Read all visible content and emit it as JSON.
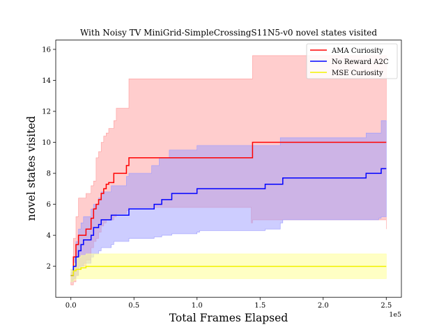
{
  "chart_data": {
    "type": "line",
    "title": "With Noisy TV MiniGrid-SimpleCrossingS11N5-v0 novel states visited",
    "xlabel": "Total Frames Elapsed",
    "ylabel": "novel states visited",
    "x_offset_label": "1e5",
    "xlim": [
      -12000,
      262000
    ],
    "ylim": [
      0,
      16.6
    ],
    "x_ticks": [
      0,
      50000,
      100000,
      150000,
      200000,
      250000
    ],
    "x_tick_labels": [
      "0.0",
      "0.5",
      "1.0",
      "1.5",
      "2.0",
      "2.5"
    ],
    "y_ticks": [
      2,
      4,
      6,
      8,
      10,
      12,
      14,
      16
    ],
    "y_tick_labels": [
      "2",
      "4",
      "6",
      "8",
      "10",
      "12",
      "14",
      "16"
    ],
    "legend_position": "top-right",
    "series": [
      {
        "name": "AMA Curiosity",
        "color": "#ff0000",
        "band_color": "#ff9c9c",
        "band_opacity": 0.5,
        "x": [
          0,
          2000,
          4000,
          6000,
          12000,
          16000,
          18000,
          20000,
          22000,
          24000,
          26000,
          28000,
          30000,
          34000,
          36000,
          44000,
          46000,
          143000,
          144000,
          250000
        ],
        "y": [
          1.4,
          2.6,
          3.4,
          4.0,
          4.4,
          5.1,
          5.7,
          6.0,
          6.3,
          6.7,
          7.0,
          7.3,
          7.4,
          8.0,
          8.0,
          8.5,
          9.0,
          9.0,
          10.0,
          10.0
        ],
        "lower": [
          0.8,
          1.0,
          1.4,
          2.0,
          2.4,
          3.2,
          3.6,
          3.8,
          4.2,
          4.6,
          4.8,
          5.0,
          5.0,
          5.2,
          5.4,
          5.6,
          5.8,
          4.8,
          5.0,
          4.4
        ],
        "upper": [
          1.6,
          3.8,
          5.2,
          6.4,
          6.7,
          7.2,
          7.5,
          9.0,
          9.4,
          10.0,
          10.4,
          10.6,
          10.9,
          11.4,
          12.2,
          12.2,
          14.1,
          14.1,
          15.6,
          15.6
        ]
      },
      {
        "name": "No Reward A2C",
        "color": "#0000ff",
        "band_color": "#9c9cff",
        "band_opacity": 0.5,
        "x": [
          0,
          2000,
          4000,
          6000,
          8000,
          10000,
          16000,
          18000,
          22000,
          24000,
          32000,
          34000,
          44000,
          46000,
          64000,
          66000,
          70000,
          72000,
          78000,
          80000,
          100000,
          102000,
          152000,
          154000,
          166000,
          168000,
          232000,
          234000,
          244000,
          246000,
          250000
        ],
        "y": [
          1.4,
          2.0,
          2.6,
          3.0,
          3.4,
          3.7,
          4.0,
          4.5,
          4.7,
          5.0,
          5.3,
          5.3,
          5.3,
          5.7,
          5.7,
          6.0,
          6.0,
          6.3,
          6.3,
          6.7,
          7.0,
          7.0,
          7.0,
          7.3,
          7.3,
          7.7,
          7.7,
          8.0,
          8.0,
          8.3,
          8.3
        ],
        "lower": [
          1.0,
          1.2,
          1.4,
          1.8,
          2.0,
          2.2,
          2.6,
          2.8,
          3.0,
          3.2,
          3.4,
          3.6,
          3.6,
          3.8,
          3.8,
          3.9,
          3.9,
          4.0,
          4.0,
          4.1,
          4.2,
          4.3,
          4.3,
          4.4,
          4.8,
          5.0,
          5.0,
          5.0,
          5.1,
          5.2,
          5.3
        ],
        "upper": [
          1.8,
          2.6,
          3.6,
          4.4,
          4.8,
          5.2,
          5.7,
          6.0,
          6.4,
          6.8,
          7.2,
          7.2,
          7.8,
          8.0,
          8.5,
          8.5,
          9.0,
          9.0,
          9.5,
          9.5,
          9.8,
          9.8,
          9.8,
          9.8,
          10.3,
          10.3,
          10.3,
          10.6,
          10.6,
          11.4,
          11.4
        ]
      },
      {
        "name": "MSE Curiosity",
        "color": "#f2f200",
        "band_color": "#ffff9c",
        "band_opacity": 0.6,
        "x": [
          0,
          2000,
          4000,
          8000,
          12000,
          14000,
          250000
        ],
        "y": [
          1.4,
          1.7,
          1.8,
          1.9,
          2.0,
          2.0,
          2.0
        ],
        "lower": [
          1.0,
          1.1,
          1.2,
          1.2,
          1.2,
          1.2,
          1.2
        ],
        "upper": [
          1.8,
          2.2,
          2.6,
          2.7,
          2.8,
          2.8,
          2.8
        ]
      }
    ]
  }
}
